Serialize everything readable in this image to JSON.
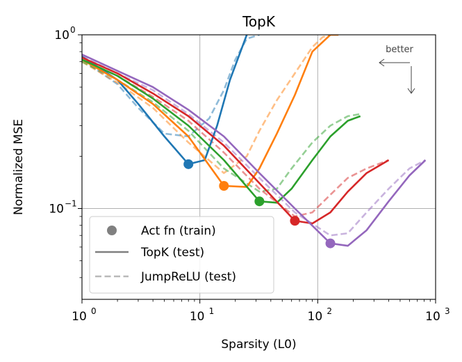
{
  "chart_data": {
    "type": "line",
    "title": "TopK",
    "xlabel": "Sparsity (L0)",
    "ylabel": "Normalized MSE",
    "xscale": "log",
    "yscale": "log",
    "xlim": [
      1,
      1000
    ],
    "ylim": [
      0.03,
      1.0
    ],
    "x_ticks": [
      {
        "value": 1,
        "base": "10",
        "exp": "0"
      },
      {
        "value": 10,
        "base": "10",
        "exp": "1"
      },
      {
        "value": 100,
        "base": "10",
        "exp": "2"
      },
      {
        "value": 1000,
        "base": "10",
        "exp": "3"
      }
    ],
    "y_ticks": [
      {
        "value": 0.1,
        "base": "10",
        "exp": "−1"
      },
      {
        "value": 1,
        "base": "10",
        "exp": "0"
      }
    ],
    "grid": true,
    "annotation": "better",
    "legend": {
      "position": "lower-left",
      "entries": [
        {
          "label": "Act fn (train)",
          "style": "marker"
        },
        {
          "label": "TopK (test)",
          "style": "solid"
        },
        {
          "label": "JumpReLU (test)",
          "style": "dashed"
        }
      ]
    },
    "series": [
      {
        "color": "#1f77b4",
        "train_point": {
          "x": 8,
          "y": 0.18
        },
        "topk": {
          "x": [
            1,
            2,
            3,
            5,
            8,
            11,
            14,
            18,
            25
          ],
          "y": [
            0.75,
            0.55,
            0.4,
            0.26,
            0.18,
            0.19,
            0.3,
            0.55,
            1.0
          ]
        },
        "jumprelu": {
          "x": [
            1,
            2,
            3,
            5,
            8,
            12,
            16,
            20,
            25,
            32
          ],
          "y": [
            0.72,
            0.52,
            0.38,
            0.27,
            0.26,
            0.33,
            0.48,
            0.72,
            0.95,
            1.0
          ]
        }
      },
      {
        "color": "#ff7f0e",
        "train_point": {
          "x": 16,
          "y": 0.135
        },
        "topk": {
          "x": [
            1,
            2,
            4,
            8,
            16,
            25,
            32,
            45,
            64,
            90,
            128,
            150
          ],
          "y": [
            0.72,
            0.55,
            0.4,
            0.26,
            0.135,
            0.133,
            0.17,
            0.27,
            0.45,
            0.8,
            1.0,
            1.0
          ]
        },
        "jumprelu": {
          "x": [
            1,
            2,
            4,
            8,
            16,
            25,
            32,
            45,
            64,
            90,
            110,
            128
          ],
          "y": [
            0.7,
            0.53,
            0.38,
            0.24,
            0.16,
            0.2,
            0.28,
            0.42,
            0.6,
            0.85,
            0.97,
            1.0
          ]
        }
      },
      {
        "color": "#2ca02c",
        "train_point": {
          "x": 32,
          "y": 0.11
        },
        "topk": {
          "x": [
            1,
            2,
            4,
            8,
            16,
            32,
            45,
            60,
            90,
            128,
            180,
            230
          ],
          "y": [
            0.72,
            0.58,
            0.43,
            0.3,
            0.19,
            0.11,
            0.108,
            0.13,
            0.19,
            0.26,
            0.32,
            0.34
          ]
        },
        "jumprelu": {
          "x": [
            1,
            2,
            4,
            8,
            16,
            32,
            45,
            60,
            90,
            128,
            180,
            230
          ],
          "y": [
            0.7,
            0.55,
            0.41,
            0.28,
            0.17,
            0.125,
            0.13,
            0.17,
            0.24,
            0.3,
            0.34,
            0.35
          ]
        }
      },
      {
        "color": "#d62728",
        "train_point": {
          "x": 64,
          "y": 0.085
        },
        "topk": {
          "x": [
            1,
            2,
            4,
            8,
            16,
            32,
            64,
            90,
            128,
            180,
            260,
            400
          ],
          "y": [
            0.74,
            0.6,
            0.46,
            0.34,
            0.23,
            0.14,
            0.085,
            0.082,
            0.095,
            0.125,
            0.16,
            0.19
          ]
        },
        "jumprelu": {
          "x": [
            1,
            2,
            4,
            8,
            16,
            32,
            64,
            90,
            128,
            180,
            260,
            400
          ],
          "y": [
            0.72,
            0.58,
            0.44,
            0.32,
            0.21,
            0.13,
            0.09,
            0.095,
            0.12,
            0.15,
            0.17,
            0.19
          ]
        }
      },
      {
        "color": "#9467bd",
        "train_point": {
          "x": 128,
          "y": 0.063
        },
        "topk": {
          "x": [
            1,
            2,
            4,
            8,
            16,
            32,
            64,
            128,
            180,
            260,
            400,
            600,
            820
          ],
          "y": [
            0.77,
            0.62,
            0.5,
            0.37,
            0.26,
            0.16,
            0.1,
            0.063,
            0.061,
            0.075,
            0.11,
            0.155,
            0.19
          ]
        },
        "jumprelu": {
          "x": [
            1,
            2,
            4,
            8,
            16,
            32,
            64,
            128,
            180,
            260,
            400,
            600,
            820
          ],
          "y": [
            0.75,
            0.6,
            0.48,
            0.35,
            0.24,
            0.15,
            0.095,
            0.07,
            0.072,
            0.095,
            0.13,
            0.17,
            0.19
          ]
        }
      }
    ]
  }
}
